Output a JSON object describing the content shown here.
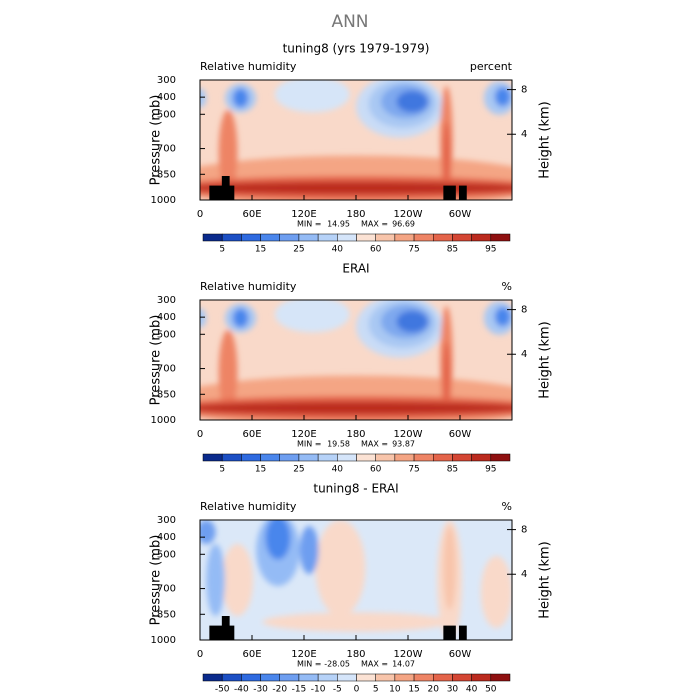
{
  "title": "ANN",
  "chart_data": [
    {
      "type": "contour",
      "title": "tuning8 (yrs 1979-1979)",
      "left_label": "Relative humidity",
      "right_label": "percent",
      "ylabel": "Pressure (mb)",
      "y2label": "Height (km)",
      "xlim": [
        0,
        360
      ],
      "xticks": [
        0,
        {
          "value": 60,
          "label": "60E"
        },
        {
          "value": 120,
          "label": "120E"
        },
        180,
        {
          "value": 240,
          "label": "120W"
        },
        {
          "value": 300,
          "label": "60W"
        }
      ],
      "ylim": [
        1000,
        300
      ],
      "yticks": [
        300,
        400,
        500,
        700,
        850,
        1000
      ],
      "y2ticks": [
        4,
        8
      ],
      "stats": {
        "min_label": "MIN =",
        "min": 14.95,
        "max_label": "MAX =",
        "max": 96.69
      },
      "colorbar": {
        "colors": [
          "#0a2a8c",
          "#1c4fc4",
          "#2e6ae0",
          "#4a86ec",
          "#6e9ef0",
          "#94bbf5",
          "#b6d2f8",
          "#d5e5fa",
          "#fbe2d4",
          "#f8c5ab",
          "#f4a584",
          "#ee8465",
          "#e4644a",
          "#d44633",
          "#bb2a1e",
          "#8f1010"
        ],
        "ticks": [
          5,
          15,
          25,
          40,
          60,
          75,
          85,
          95
        ]
      }
    },
    {
      "type": "contour",
      "title": "ERAI",
      "left_label": "Relative humidity",
      "right_label": "%",
      "ylabel": "Pressure (mb)",
      "y2label": "Height (km)",
      "xlim": [
        0,
        360
      ],
      "xticks": [
        0,
        {
          "value": 60,
          "label": "60E"
        },
        {
          "value": 120,
          "label": "120E"
        },
        180,
        {
          "value": 240,
          "label": "120W"
        },
        {
          "value": 300,
          "label": "60W"
        }
      ],
      "ylim": [
        1000,
        300
      ],
      "yticks": [
        300,
        400,
        500,
        700,
        850,
        1000
      ],
      "y2ticks": [
        4,
        8
      ],
      "stats": {
        "min_label": "MIN =",
        "min": 19.58,
        "max_label": "MAX =",
        "max": 93.87
      },
      "colorbar": {
        "colors": [
          "#0a2a8c",
          "#1c4fc4",
          "#2e6ae0",
          "#4a86ec",
          "#6e9ef0",
          "#94bbf5",
          "#b6d2f8",
          "#d5e5fa",
          "#fbe2d4",
          "#f8c5ab",
          "#f4a584",
          "#ee8465",
          "#e4644a",
          "#d44633",
          "#bb2a1e",
          "#8f1010"
        ],
        "ticks": [
          5,
          15,
          25,
          40,
          60,
          75,
          85,
          95
        ]
      }
    },
    {
      "type": "contour",
      "title": "tuning8 - ERAI",
      "left_label": "Relative humidity",
      "right_label": "%",
      "ylabel": "Pressure (mb)",
      "y2label": "Height (km)",
      "xlim": [
        0,
        360
      ],
      "xticks": [
        0,
        {
          "value": 60,
          "label": "60E"
        },
        {
          "value": 120,
          "label": "120E"
        },
        180,
        {
          "value": 240,
          "label": "120W"
        },
        {
          "value": 300,
          "label": "60W"
        }
      ],
      "ylim": [
        1000,
        300
      ],
      "yticks": [
        300,
        400,
        500,
        700,
        850,
        1000
      ],
      "y2ticks": [
        4,
        8
      ],
      "stats": {
        "min_label": "MIN =",
        "min": -28.05,
        "max_label": "MAX =",
        "max": 14.07
      },
      "colorbar": {
        "colors": [
          "#0a2a8c",
          "#1c4fc4",
          "#2e6ae0",
          "#4a86ec",
          "#6e9ef0",
          "#94bbf5",
          "#b6d2f8",
          "#d5e5fa",
          "#fbe2d4",
          "#f8c5ab",
          "#f4a584",
          "#ee8465",
          "#e4644a",
          "#d44633",
          "#bb2a1e",
          "#8f1010"
        ],
        "ticks": [
          -50,
          -40,
          -30,
          -20,
          -15,
          -10,
          -5,
          0,
          5,
          10,
          15,
          20,
          30,
          40,
          50
        ]
      }
    }
  ]
}
